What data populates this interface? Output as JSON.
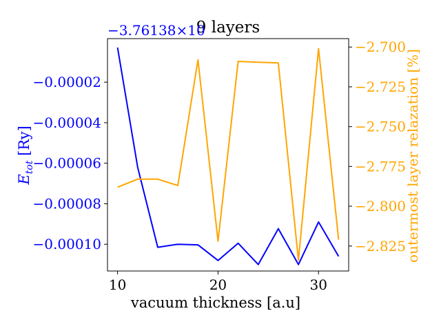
{
  "chart_data": {
    "type": "line",
    "title": "9 layers",
    "xlabel": "vacuum thickness [a.u]",
    "ylabel_left": "E_tot [Ry]",
    "ylabel_right": "outermost layer relazation [%]",
    "offset_text": "−3.76138×10",
    "x": [
      10,
      12,
      14,
      16,
      18,
      20,
      22,
      24,
      26,
      28,
      30,
      32
    ],
    "xlim": [
      9,
      33
    ],
    "xticks": [
      10,
      20,
      30
    ],
    "series": [
      {
        "name": "",
        "axis": "left",
        "color": "#0000ff",
        "values": [
          -2.9e-06,
          -6.2e-05,
          -0.0001015,
          -0.0001,
          -0.0001003,
          -0.000108,
          -9.95e-05,
          -0.00011,
          -9.23e-05,
          -0.00011,
          -8.9e-05,
          -0.000106
        ]
      },
      {
        "name": "",
        "axis": "right",
        "color": "#ffa500",
        "values": [
          -2.788,
          -2.783,
          -2.783,
          -2.787,
          -2.708,
          -2.822,
          -2.709,
          -2.7095,
          -2.71,
          -2.834,
          -2.701,
          -2.821
        ]
      }
    ],
    "left_axis": {
      "color": "#0000ff",
      "ylim": [
        -0.0001132,
        1.5e-06
      ],
      "ticks": [
        -2e-05,
        -4e-05,
        -6e-05,
        -8e-05,
        -0.0001
      ],
      "tick_labels": [
        "−0.00002",
        "−0.00004",
        "−0.00006",
        "−0.00008",
        "−0.00010"
      ]
    },
    "right_axis": {
      "color": "#ffa500",
      "ylim": [
        -2.8407,
        -2.6947
      ],
      "ticks": [
        -2.7,
        -2.725,
        -2.75,
        -2.775,
        -2.8,
        -2.825
      ],
      "tick_labels": [
        "−2.700",
        "−2.725",
        "−2.750",
        "−2.775",
        "−2.800",
        "−2.825"
      ]
    },
    "grid": false,
    "legend": "none"
  }
}
